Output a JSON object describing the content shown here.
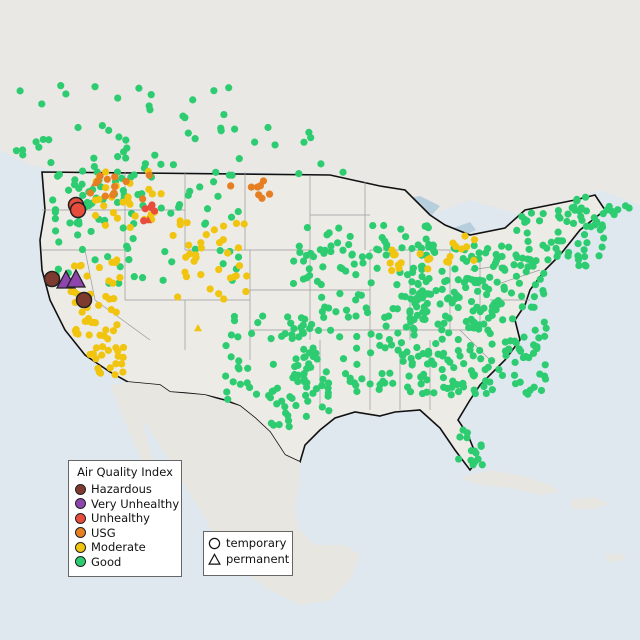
{
  "legend": {
    "title": "Air Quality Index",
    "items": [
      {
        "label": "Hazardous",
        "color": "#7e3a2e"
      },
      {
        "label": "Very Unhealthy",
        "color": "#8e44ad"
      },
      {
        "label": "Unhealthy",
        "color": "#e74c3c"
      },
      {
        "label": "USG",
        "color": "#e67e22"
      },
      {
        "label": "Moderate",
        "color": "#f1c40f"
      },
      {
        "label": "Good",
        "color": "#2ecc71"
      }
    ],
    "types": [
      {
        "label": "temporary",
        "icon": "circle-icon"
      },
      {
        "label": "permanent",
        "icon": "triangle-icon"
      }
    ]
  }
}
